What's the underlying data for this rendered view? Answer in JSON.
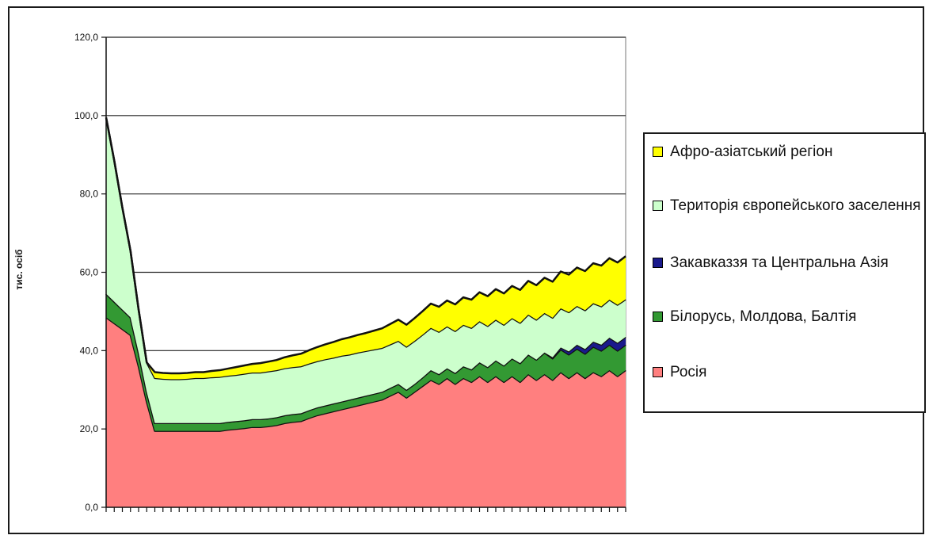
{
  "chart_data": {
    "type": "area",
    "stacked": true,
    "title": "",
    "xlabel": "",
    "ylabel": "тис. осіб",
    "ylim": [
      0,
      120
    ],
    "yticks": [
      "0,0",
      "20,0",
      "40,0",
      "60,0",
      "80,0",
      "100,0",
      "120,0"
    ],
    "ytick_values": [
      0,
      20,
      40,
      60,
      80,
      100,
      120
    ],
    "grid": "horizontal",
    "legend_position": "right",
    "x": [
      1,
      2,
      3,
      4,
      5,
      6,
      7,
      8,
      9,
      10,
      11,
      12,
      13,
      14,
      15,
      16,
      17,
      18,
      19,
      20,
      21,
      22,
      23,
      24,
      25,
      26,
      27,
      28,
      29,
      30,
      31,
      32,
      33,
      34,
      35,
      36,
      37,
      38,
      39,
      40,
      41,
      42,
      43,
      44,
      45,
      46,
      47,
      48,
      49,
      50,
      51,
      52,
      53,
      54,
      55,
      56,
      57,
      58,
      59,
      60,
      61,
      62,
      63,
      64,
      65
    ],
    "series": [
      {
        "name": "Росія",
        "color": "#ff7f7f",
        "values": [
          48.5,
          47.0,
          45.5,
          44.0,
          36.0,
          27.0,
          19.5,
          19.5,
          19.5,
          19.5,
          19.5,
          19.5,
          19.5,
          19.5,
          19.5,
          19.8,
          20.0,
          20.2,
          20.5,
          20.5,
          20.7,
          21.0,
          21.5,
          21.8,
          22.0,
          22.8,
          23.5,
          24.0,
          24.5,
          25.0,
          25.5,
          26.0,
          26.5,
          27.0,
          27.5,
          28.5,
          29.5,
          28.0,
          29.5,
          31.0,
          32.5,
          31.5,
          33.0,
          31.5,
          33.0,
          32.0,
          33.5,
          32.0,
          33.5,
          32.0,
          33.5,
          32.0,
          34.0,
          32.5,
          34.0,
          32.5,
          34.5,
          33.0,
          34.5,
          33.0,
          34.5,
          33.5,
          35.0,
          33.5,
          35.0
        ]
      },
      {
        "name": "Білорусь, Молдова, Балтія",
        "color": "#339933",
        "values": [
          6.0,
          5.5,
          5.0,
          4.5,
          3.5,
          2.5,
          2.0,
          2.0,
          2.0,
          2.0,
          2.0,
          2.0,
          2.0,
          2.0,
          2.0,
          2.0,
          2.0,
          2.0,
          2.0,
          2.0,
          2.0,
          2.0,
          2.0,
          2.0,
          2.0,
          2.0,
          2.0,
          2.0,
          2.0,
          2.0,
          2.0,
          2.0,
          2.0,
          2.0,
          2.0,
          2.0,
          2.0,
          2.0,
          2.0,
          2.2,
          2.5,
          2.5,
          2.5,
          2.8,
          3.0,
          3.2,
          3.5,
          3.8,
          4.0,
          4.2,
          4.5,
          4.8,
          5.0,
          5.2,
          5.5,
          5.5,
          5.8,
          6.0,
          6.0,
          6.2,
          6.5,
          6.5,
          6.5,
          6.5,
          6.5
        ]
      },
      {
        "name": "Закавказзя та Центральна Азія",
        "color": "#1a1a8c",
        "values": [
          0,
          0,
          0,
          0,
          0,
          0,
          0,
          0,
          0,
          0,
          0,
          0,
          0,
          0,
          0,
          0,
          0,
          0,
          0,
          0,
          0,
          0,
          0,
          0,
          0,
          0,
          0,
          0,
          0,
          0,
          0,
          0,
          0,
          0,
          0,
          0,
          0,
          0,
          0,
          0,
          0,
          0,
          0,
          0,
          0,
          0,
          0,
          0,
          0,
          0,
          0,
          0,
          0,
          0,
          0,
          0.3,
          0.5,
          0.8,
          1.0,
          1.2,
          1.3,
          1.5,
          1.8,
          2.0,
          2.0
        ]
      },
      {
        "name": "Територія європейського заселення",
        "color": "#ccffcc",
        "values": [
          45.0,
          36.0,
          26.0,
          17.0,
          11.0,
          7.5,
          11.5,
          11.3,
          11.2,
          11.2,
          11.3,
          11.5,
          11.5,
          11.7,
          11.8,
          11.8,
          11.8,
          11.9,
          11.9,
          11.9,
          12.0,
          12.0,
          12.0,
          12.0,
          12.0,
          11.9,
          11.8,
          11.8,
          11.7,
          11.7,
          11.5,
          11.5,
          11.4,
          11.3,
          11.2,
          11.1,
          11.0,
          11.0,
          11.0,
          10.9,
          10.8,
          10.8,
          10.7,
          10.7,
          10.6,
          10.6,
          10.5,
          10.5,
          10.4,
          10.4,
          10.3,
          10.3,
          10.2,
          10.2,
          10.1,
          10.1,
          10.0,
          10.0,
          9.9,
          9.9,
          9.8,
          9.8,
          9.7,
          9.7,
          9.6
        ]
      },
      {
        "name": "Афро-азіатський регіон",
        "color": "#ffff00",
        "values": [
          0,
          0,
          0,
          0,
          0,
          0,
          1.5,
          1.5,
          1.5,
          1.5,
          1.5,
          1.5,
          1.5,
          1.6,
          1.7,
          1.8,
          2.0,
          2.1,
          2.2,
          2.4,
          2.5,
          2.6,
          2.8,
          3.0,
          3.2,
          3.4,
          3.6,
          3.8,
          4.0,
          4.2,
          4.4,
          4.5,
          4.6,
          4.8,
          5.0,
          5.2,
          5.4,
          5.6,
          5.8,
          6.0,
          6.2,
          6.4,
          6.6,
          6.8,
          7.0,
          7.2,
          7.4,
          7.6,
          7.8,
          8.0,
          8.2,
          8.4,
          8.6,
          8.8,
          9.0,
          9.2,
          9.4,
          9.6,
          9.8,
          10.0,
          10.2,
          10.4,
          10.6,
          10.8,
          11.0
        ]
      }
    ]
  }
}
